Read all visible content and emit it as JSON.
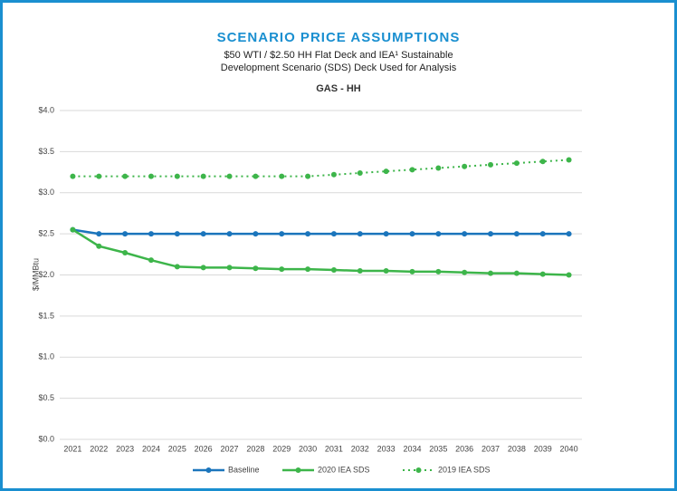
{
  "chart_data": {
    "type": "line",
    "title": "SCENARIO PRICE ASSUMPTIONS",
    "subtitle": [
      "$50 WTI / $2.50 HH Flat Deck and IEA¹ Sustainable",
      "Development Scenario (SDS) Deck Used for Analysis"
    ],
    "chart_title": "GAS - HH",
    "y_axis_label": "$/MMBtu",
    "categories": [
      "2021",
      "2022",
      "2023",
      "2024",
      "2025",
      "2026",
      "2027",
      "2028",
      "2029",
      "2030",
      "2031",
      "2032",
      "2033",
      "2034",
      "2035",
      "2036",
      "2037",
      "2038",
      "2039",
      "2040"
    ],
    "series": [
      {
        "name": "Baseline",
        "color": "#1b75bc",
        "line_style": "solid",
        "values": [
          2.55,
          2.5,
          2.5,
          2.5,
          2.5,
          2.5,
          2.5,
          2.5,
          2.5,
          2.5,
          2.5,
          2.5,
          2.5,
          2.5,
          2.5,
          2.5,
          2.5,
          2.5,
          2.5,
          2.5
        ]
      },
      {
        "name": "2020 IEA SDS",
        "color": "#3db54a",
        "line_style": "solid",
        "values": [
          2.55,
          2.35,
          2.27,
          2.18,
          2.1,
          2.09,
          2.09,
          2.08,
          2.07,
          2.07,
          2.06,
          2.05,
          2.05,
          2.04,
          2.04,
          2.03,
          2.02,
          2.02,
          2.01,
          2.0
        ]
      },
      {
        "name": "2019 IEA SDS",
        "color": "#3db54a",
        "line_style": "dotted",
        "values": [
          3.2,
          3.2,
          3.2,
          3.2,
          3.2,
          3.2,
          3.2,
          3.2,
          3.2,
          3.2,
          3.22,
          3.24,
          3.26,
          3.28,
          3.3,
          3.32,
          3.34,
          3.36,
          3.38,
          3.4
        ]
      }
    ],
    "ylim": [
      0,
      4
    ],
    "yticks": [
      {
        "value": 0,
        "label": "$0.0"
      },
      {
        "value": 0.5,
        "label": "$0.5"
      },
      {
        "value": 1,
        "label": "$1.0"
      },
      {
        "value": 1.5,
        "label": "$1.5"
      },
      {
        "value": 2,
        "label": "$2.0"
      },
      {
        "value": 2.5,
        "label": "$2.5"
      },
      {
        "value": 3,
        "label": "$3.0"
      },
      {
        "value": 3.5,
        "label": "$3.5"
      },
      {
        "value": 4,
        "label": "$4.0"
      }
    ],
    "grid": true
  }
}
